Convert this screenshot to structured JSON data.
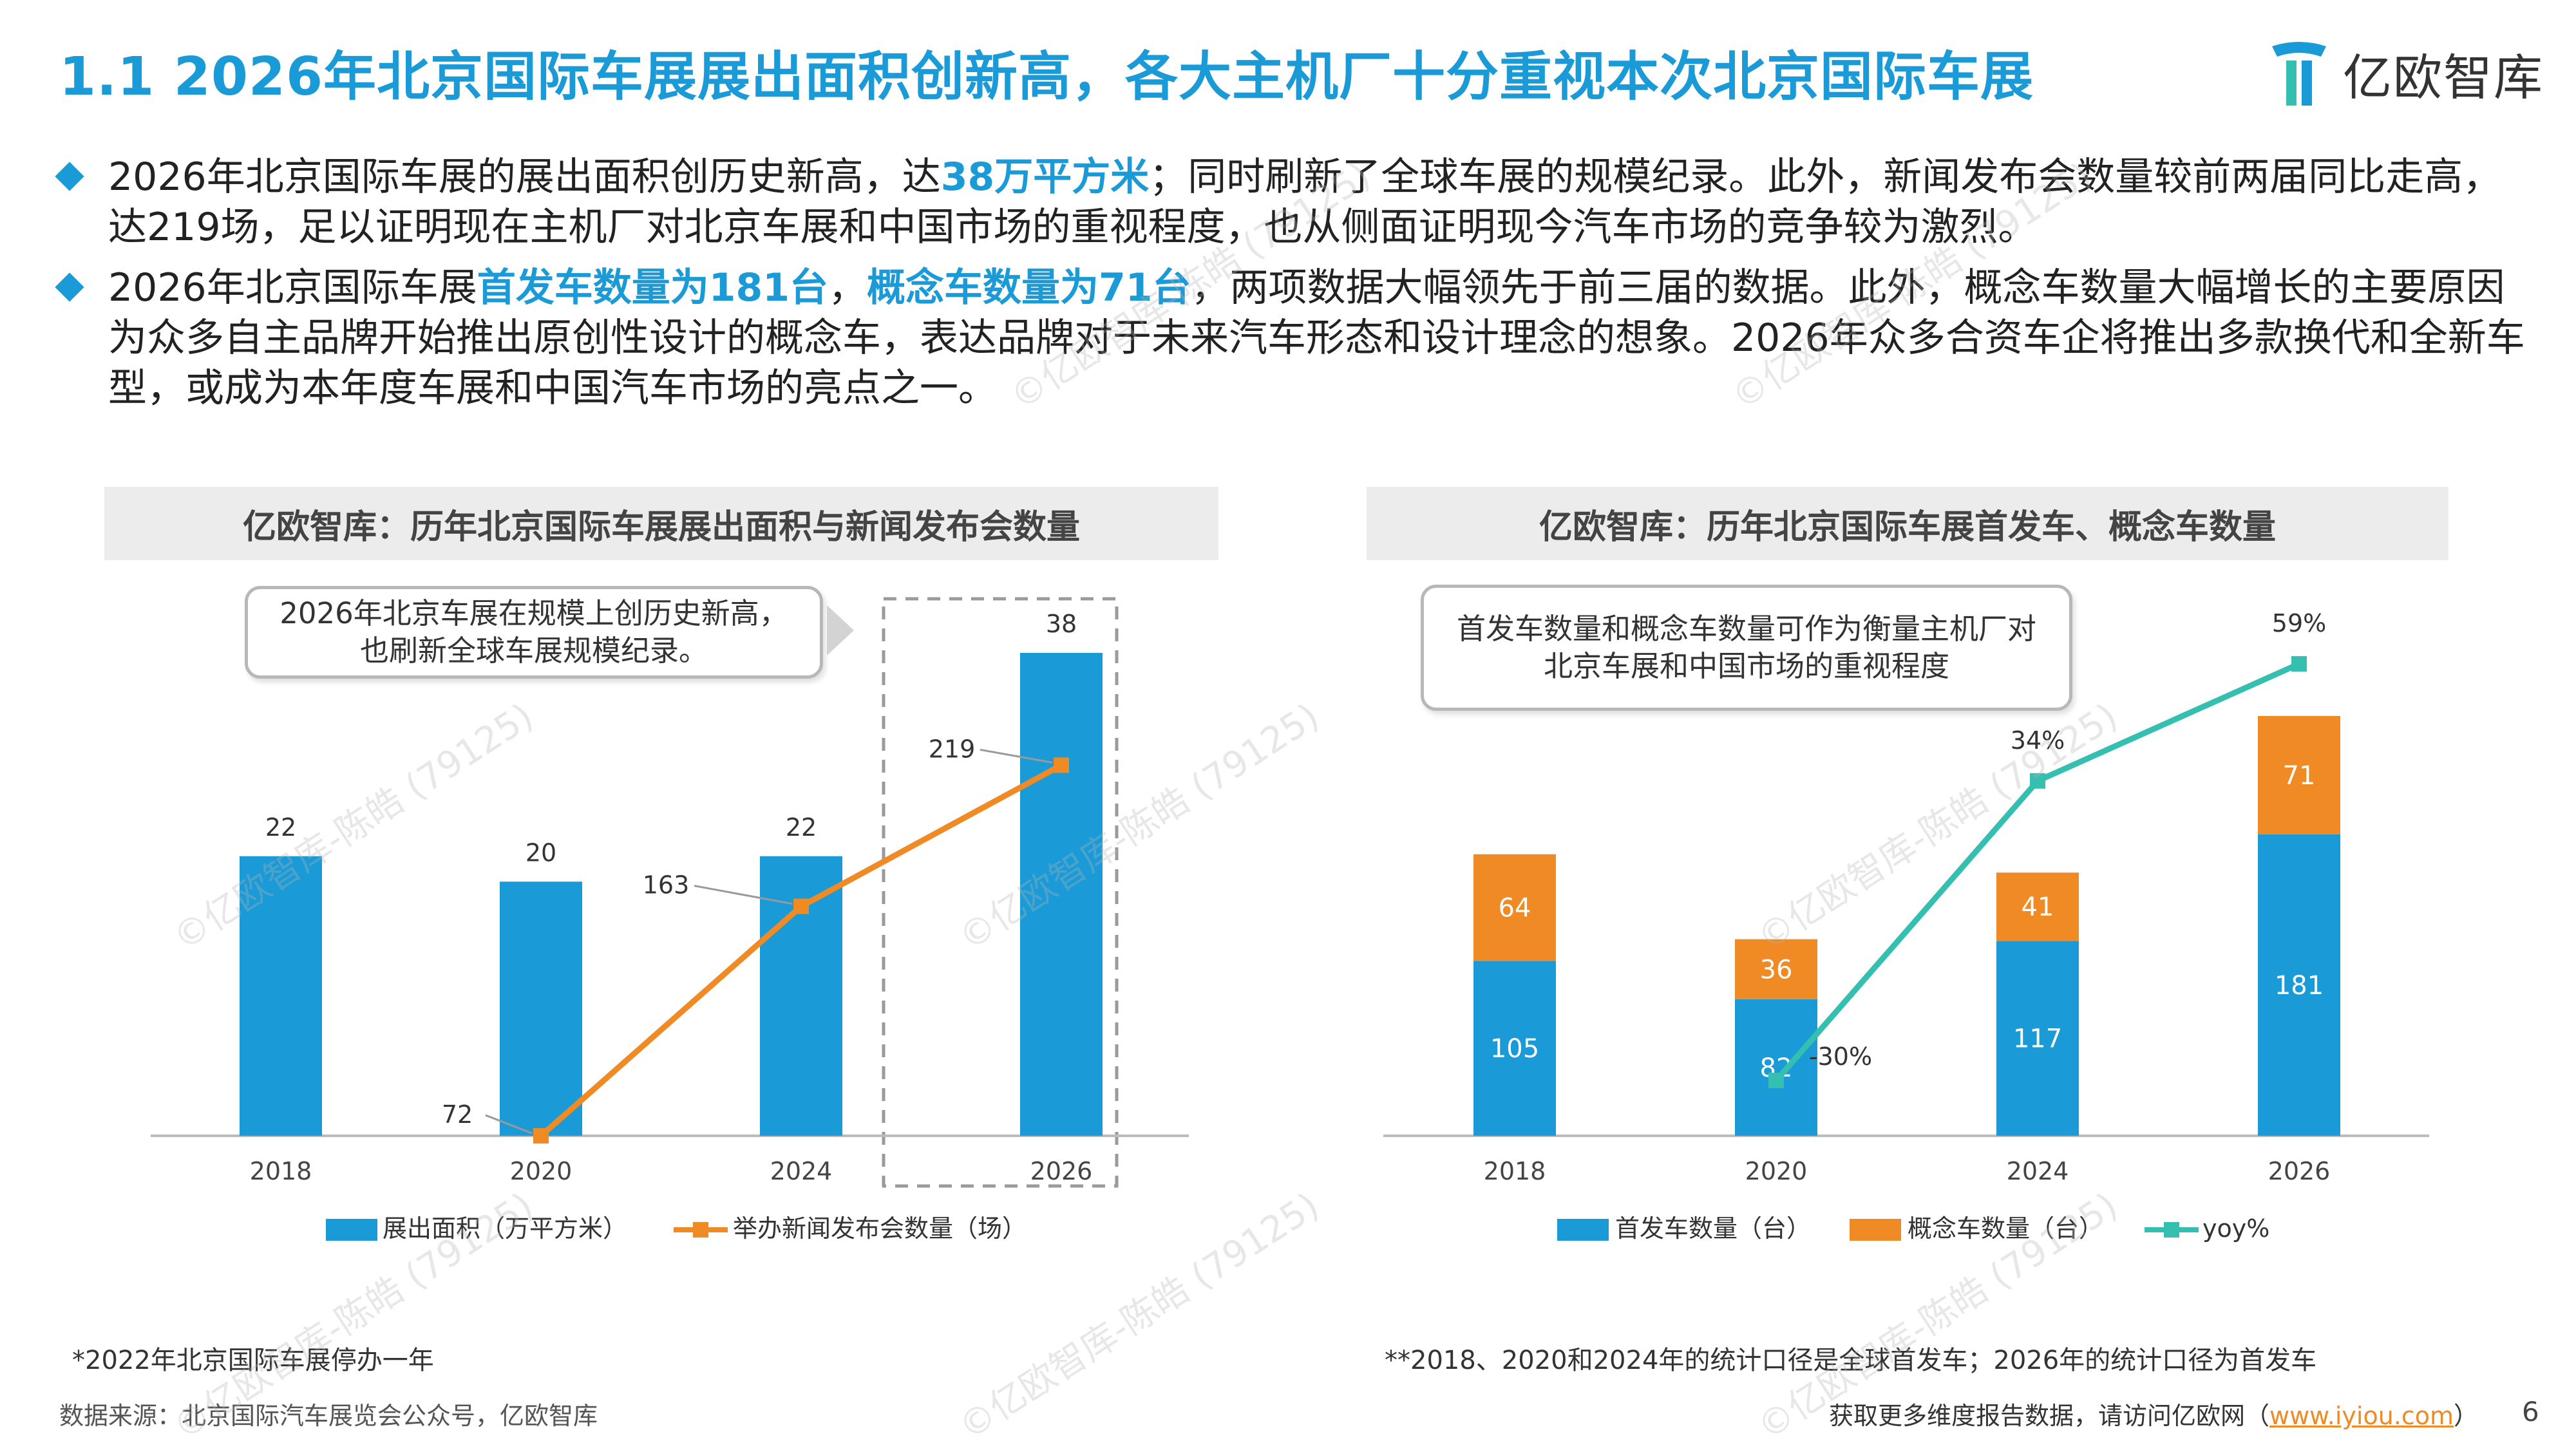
{
  "title": "1.1 2026年北京国际车展展出面积创新高，各大主机厂十分重视本次北京国际车展",
  "logo_text": "亿欧智库",
  "bullet1": {
    "a": "2026年北京国际车展的展出面积创历史新高，达",
    "hl": "38万平方米",
    "b": "；同时刷新了全球车展的规模纪录。此外，新闻发布会数量较前两届同比走高，达219场，足以证明现在主机厂对北京车展和中国市场的重视程度，也从侧面证明现今汽车市场的竞争较为激烈。"
  },
  "bullet2": {
    "a": "2026年北京国际车展",
    "hl1": "首发车数量为181台",
    "b": "，",
    "hl2": "概念车数量为71台",
    "c": "，两项数据大幅领先于前三届的数据。此外，概念车数量大幅增长的主要原因为众多自主品牌开始推出原创性设计的概念车，表达品牌对于未来汽车形态和设计理念的想象。2026年众多合资车企将推出多款换代和全新车型，或成为本年度车展和中国汽车市场的亮点之一。"
  },
  "left_panel": {
    "header": "亿欧智库：历年北京国际车展展出面积与新闻发布会数量",
    "callout": "2026年北京车展在规模上创历史新高，\n也刷新全球车展规模纪录。",
    "footnote": "*2022年北京国际车展停办一年"
  },
  "right_panel": {
    "header": "亿欧智库：历年北京国际车展首发车、概念车数量",
    "callout": "首发车数量和概念车数量可作为衡量主机厂对\n北京车展和中国市场的重视程度",
    "footnote": "**2018、2020和2024年的统计口径是全球首发车；2026年的统计口径为首发车"
  },
  "source": "数据来源：北京国际汽车展览会公众号，亿欧智库",
  "footer": {
    "text": "获取更多维度报告数据，请访问亿欧网（",
    "link": "www.iyiou.com",
    "end": "）"
  },
  "page_number": "6",
  "watermark": "©亿欧智库-陈皓 (79125)",
  "colors": {
    "accent": "#1a9ad6",
    "orange": "#f08a24",
    "teal": "#35bfb0",
    "header_bg": "#ececec"
  },
  "chart_data": [
    {
      "type": "bar",
      "categories": [
        "2018",
        "2020",
        "2024",
        "2026"
      ],
      "series": [
        {
          "name": "展出面积（万平方米）",
          "type": "bar",
          "values": [
            22,
            20,
            22,
            38
          ],
          "color": "#1a9ad6"
        },
        {
          "name": "举办新闻发布会数量（场）",
          "type": "line",
          "values": [
            null,
            72,
            163,
            219
          ],
          "color": "#f08a24"
        }
      ],
      "ylim": [
        0,
        42
      ],
      "line_ylim": [
        0,
        420
      ],
      "highlight_category": "2026",
      "legend_position": "bottom"
    },
    {
      "type": "bar",
      "stacked": true,
      "categories": [
        "2018",
        "2020",
        "2024",
        "2026"
      ],
      "series": [
        {
          "name": "首发车数量（台）",
          "type": "bar",
          "values": [
            105,
            82,
            117,
            181
          ],
          "color": "#1a9ad6"
        },
        {
          "name": "概念车数量（台）",
          "type": "bar",
          "values": [
            64,
            36,
            41,
            71
          ],
          "color": "#f08a24"
        },
        {
          "name": "yoy%",
          "type": "line",
          "values": [
            null,
            -30,
            34,
            59
          ],
          "labels": [
            "",
            "-30%",
            "34%",
            "59%"
          ],
          "color": "#35bfb0"
        }
      ],
      "ylim": [
        0,
        270
      ],
      "line_ylim": [
        -50,
        80
      ],
      "legend_position": "bottom"
    }
  ]
}
